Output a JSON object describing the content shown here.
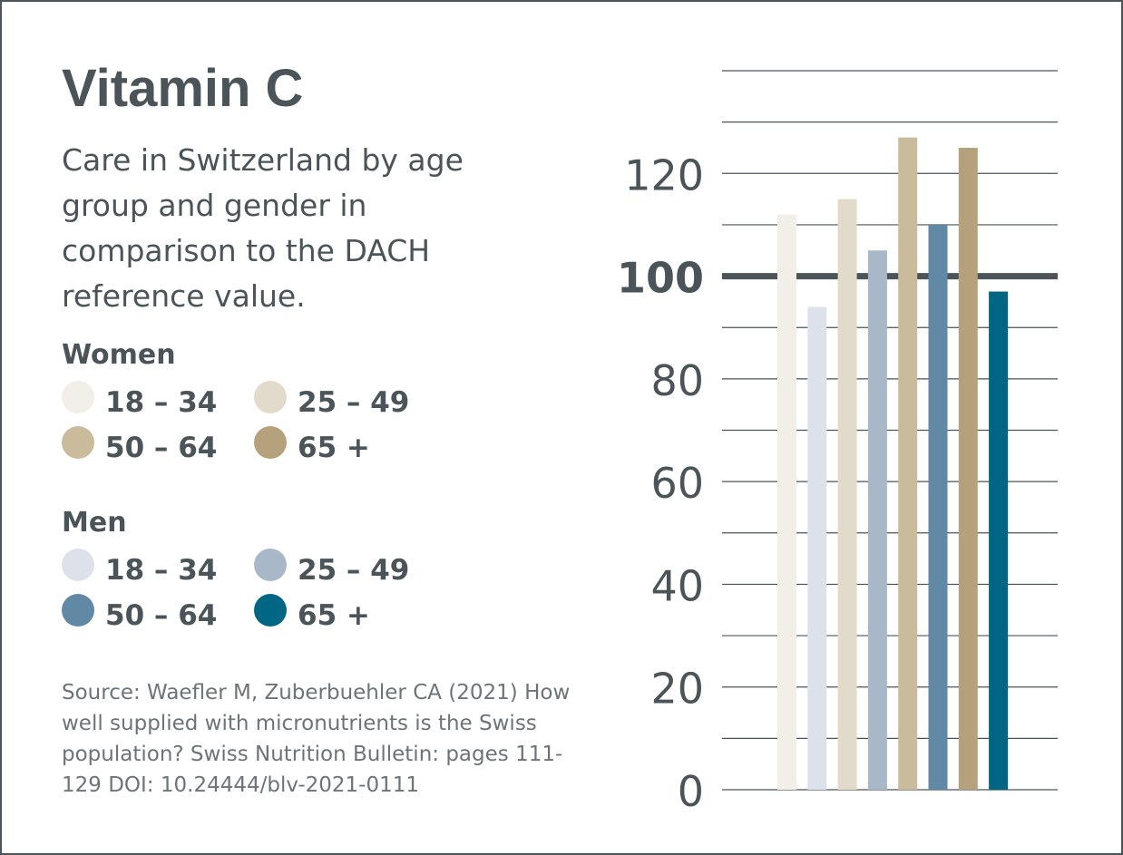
{
  "title": "Vitamin C",
  "subtitle": "Care in Switzerland by age group and gender in comparison to the DACH reference value.",
  "legend": {
    "women": {
      "title": "Women",
      "items": [
        {
          "label": "18 – 34",
          "color": "#f2efe8"
        },
        {
          "label": "25 – 49",
          "color": "#e2dacb"
        },
        {
          "label": "50 – 64",
          "color": "#c9bb9c"
        },
        {
          "label": "65 +",
          "color": "#b5a27c"
        }
      ]
    },
    "men": {
      "title": "Men",
      "items": [
        {
          "label": "18 – 34",
          "color": "#dde2ea"
        },
        {
          "label": "25 – 49",
          "color": "#a9b8c8"
        },
        {
          "label": "50 – 64",
          "color": "#6189a5"
        },
        {
          "label": "65 +",
          "color": "#006683"
        }
      ]
    }
  },
  "source": "Source: Waefler M, Zuberbuehler CA (2021) How well supplied with micronutrients is the Swiss population? Swiss Nutrition Bulletin: pages 111-129 DOI: 10.24444/blv-2021-0111",
  "chart_data": {
    "type": "bar",
    "title": "Vitamin C",
    "xlabel": "",
    "ylabel": "",
    "ylim": [
      0,
      140
    ],
    "grid": true,
    "reference_line": 100,
    "tick_labels": [
      "0",
      "20",
      "40",
      "60",
      "80",
      "100",
      "120"
    ],
    "categories": [
      "Women 18 – 34",
      "Men 18 – 34",
      "Women 25 – 49",
      "Men 25 – 49",
      "Women 50 – 64",
      "Men 50 – 64",
      "Women 65 +",
      "Men 65 +"
    ],
    "values": [
      112,
      94,
      115,
      105,
      127,
      110,
      125,
      97
    ],
    "colors": [
      "#f2efe8",
      "#dde2ea",
      "#e2dacb",
      "#a9b8c8",
      "#c9bb9c",
      "#6189a5",
      "#b5a27c",
      "#006683"
    ]
  }
}
